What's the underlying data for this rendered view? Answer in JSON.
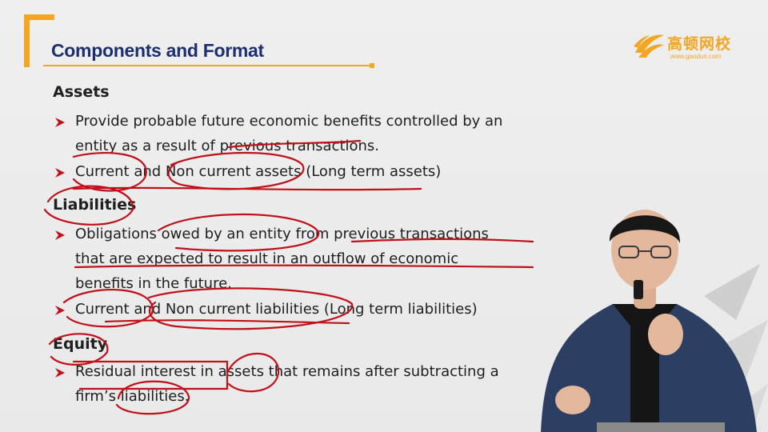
{
  "slide": {
    "title": "Components and Format",
    "logo": {
      "name": "高顿网校",
      "url": "www.gaodun.com",
      "accent_color": "#f2a623"
    },
    "title_color": "#1c2f73",
    "annotation_color": "#c0101a",
    "sections": [
      {
        "heading": "Assets",
        "bullets": [
          {
            "lines": [
              "Provide probable future economic benefits controlled by an",
              "entity as a result of previous transactions."
            ]
          },
          {
            "lines": [
              "Current and Non current assets (Long term assets)"
            ]
          }
        ]
      },
      {
        "heading": "Liabilities",
        "bullets": [
          {
            "lines": [
              "Obligations owed by an entity from previous transactions",
              "that are expected to result in an outflow of economic",
              "benefits in the future."
            ]
          },
          {
            "lines": [
              "Current and Non current liabilities (Long term liabilities)"
            ]
          }
        ]
      },
      {
        "heading": "Equity",
        "bullets": [
          {
            "lines": [
              "Residual interest in assets that remains after subtracting a",
              "firm’s liabilities."
            ]
          }
        ]
      }
    ]
  }
}
